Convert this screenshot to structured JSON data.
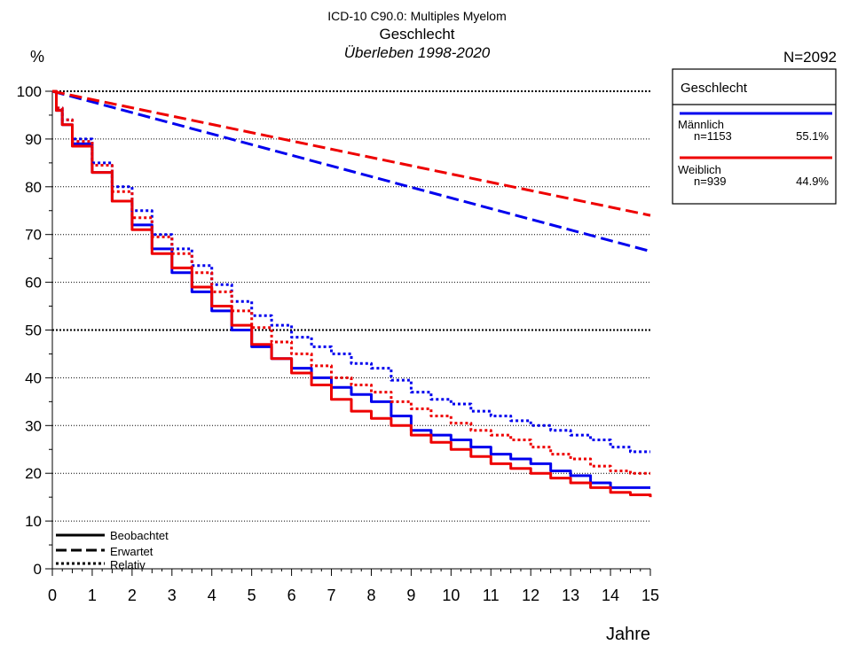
{
  "chart_data": {
    "type": "line",
    "title_line1": "ICD-10 C90.0: Multiples Myelom",
    "title_line2": "Geschlecht",
    "subtitle": "Überleben 1998-2020",
    "total_n": "N=2092",
    "ylabel": "%",
    "xlabel": "Jahre",
    "xlim": [
      0,
      15
    ],
    "ylim": [
      0,
      100
    ],
    "x_ticks": [
      "0",
      "1",
      "2",
      "3",
      "4",
      "5",
      "6",
      "7",
      "8",
      "9",
      "10",
      "11",
      "12",
      "13",
      "14",
      "15"
    ],
    "y_ticks": [
      "0",
      "10",
      "20",
      "30",
      "40",
      "50",
      "60",
      "70",
      "80",
      "90",
      "100"
    ],
    "gridlines_y": [
      10,
      20,
      30,
      40,
      50,
      60,
      70,
      80,
      90,
      100
    ],
    "legend_groups": {
      "title": "Geschlecht",
      "placement": "top-right",
      "entries": [
        {
          "name": "Männlich",
          "n": "n=1153",
          "pct": "55.1%",
          "color": "#0000ee"
        },
        {
          "name": "Weiblich",
          "n": "n=939",
          "pct": "44.9%",
          "color": "#ee0000"
        }
      ]
    },
    "legend_styles": {
      "placement": "bottom-left",
      "entries": [
        {
          "label": "Beobachtet",
          "style": "solid"
        },
        {
          "label": "Erwartet",
          "style": "dashed"
        },
        {
          "label": "Relativ",
          "style": "dotted"
        }
      ]
    },
    "series": [
      {
        "group": "Männlich",
        "kind": "observed",
        "color": "#0000ee",
        "x": [
          0,
          0.1,
          0.25,
          0.5,
          1,
          1.5,
          2,
          2.5,
          3,
          3.5,
          4,
          4.5,
          5,
          5.5,
          6,
          6.5,
          7,
          7.5,
          8,
          8.5,
          9,
          9.5,
          10,
          10.5,
          11,
          11.5,
          12,
          12.5,
          13,
          13.5,
          14,
          14.5,
          15
        ],
        "y": [
          100,
          96,
          93,
          89,
          83,
          77,
          72,
          67,
          62,
          58,
          54,
          50,
          46.5,
          44,
          42,
          40,
          38,
          36.5,
          35,
          32,
          29,
          28,
          27,
          25.5,
          24,
          23,
          22,
          20.5,
          19.5,
          18,
          17,
          17,
          17
        ]
      },
      {
        "group": "Weiblich",
        "kind": "observed",
        "color": "#ee0000",
        "x": [
          0,
          0.1,
          0.25,
          0.5,
          1,
          1.5,
          2,
          2.5,
          3,
          3.5,
          4,
          4.5,
          5,
          5.5,
          6,
          6.5,
          7,
          7.5,
          8,
          8.5,
          9,
          9.5,
          10,
          10.5,
          11,
          11.5,
          12,
          12.5,
          13,
          13.5,
          14,
          14.5,
          15
        ],
        "y": [
          100,
          96,
          93,
          88.5,
          83,
          77,
          71,
          66,
          63,
          59,
          55,
          51,
          47,
          44,
          41,
          38.5,
          35.5,
          33,
          31.5,
          30,
          28,
          26.5,
          25,
          23.5,
          22,
          21,
          20,
          19,
          18,
          17,
          16,
          15.5,
          15
        ]
      },
      {
        "group": "Männlich",
        "kind": "expected",
        "color": "#0000ee",
        "x": [
          0,
          15
        ],
        "y": [
          100,
          66.5
        ]
      },
      {
        "group": "Weiblich",
        "kind": "expected",
        "color": "#ee0000",
        "x": [
          0,
          15
        ],
        "y": [
          100,
          74
        ]
      },
      {
        "group": "Männlich",
        "kind": "relative",
        "color": "#0000ee",
        "x": [
          0,
          0.1,
          0.25,
          0.5,
          1,
          1.5,
          2,
          2.5,
          3,
          3.5,
          4,
          4.5,
          5,
          5.5,
          6,
          6.5,
          7,
          7.5,
          8,
          8.5,
          9,
          9.5,
          10,
          10.5,
          11,
          11.5,
          12,
          12.5,
          13,
          13.5,
          14,
          14.5,
          15
        ],
        "y": [
          100,
          96.5,
          94,
          90,
          85,
          80,
          75,
          70,
          67,
          63.5,
          59.5,
          56,
          53,
          51,
          48.5,
          46.5,
          45,
          43,
          42,
          39.5,
          37,
          35.5,
          34.5,
          33,
          32,
          31,
          30,
          29,
          28,
          27,
          25.5,
          24.5,
          24.5
        ]
      },
      {
        "group": "Weiblich",
        "kind": "relative",
        "color": "#ee0000",
        "x": [
          0,
          0.1,
          0.25,
          0.5,
          1,
          1.5,
          2,
          2.5,
          3,
          3.5,
          4,
          4.5,
          5,
          5.5,
          6,
          6.5,
          7,
          7.5,
          8,
          8.5,
          9,
          9.5,
          10,
          10.5,
          11,
          11.5,
          12,
          12.5,
          13,
          13.5,
          14,
          14.5,
          15
        ],
        "y": [
          100,
          96.5,
          94,
          89.5,
          84.5,
          79,
          73.5,
          69.5,
          66,
          62,
          58,
          54,
          50.5,
          47.5,
          45,
          42.5,
          40,
          38.5,
          37,
          35,
          33.5,
          32,
          30.5,
          29,
          28,
          27,
          25.5,
          24,
          23,
          21.5,
          20.5,
          20,
          20
        ]
      }
    ]
  }
}
